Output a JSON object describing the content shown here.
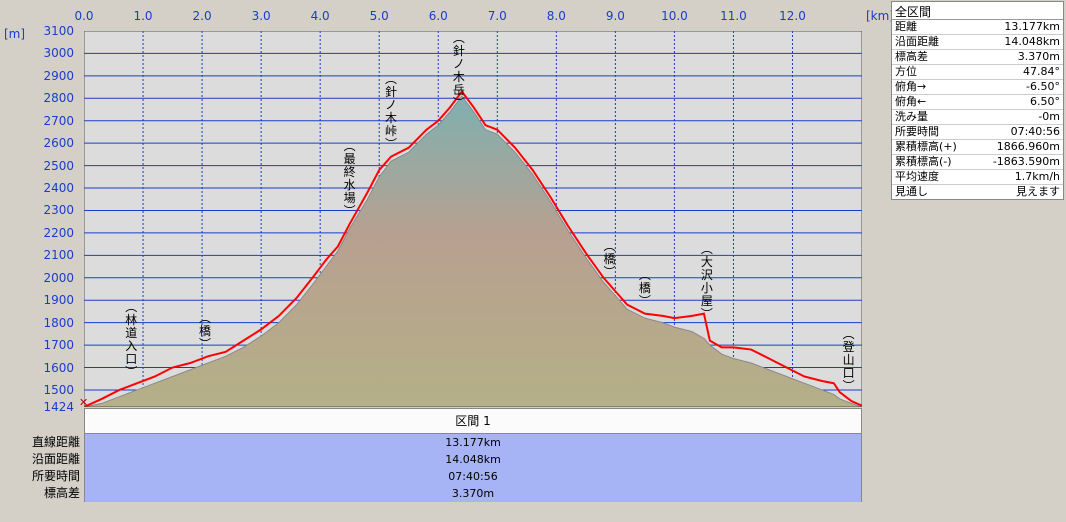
{
  "chart_data": {
    "type": "area",
    "xlabel": "[km]",
    "ylabel": "[m]",
    "xlim": [
      0,
      13.177
    ],
    "ylim": [
      1424,
      3100
    ],
    "x_ticks": [
      "0.0",
      "1.0",
      "2.0",
      "3.0",
      "4.0",
      "5.0",
      "6.0",
      "7.0",
      "8.0",
      "9.0",
      "10.0",
      "11.0",
      "12.0"
    ],
    "y_ticks": [
      "3100",
      "3000",
      "2900",
      "2800",
      "2700",
      "2600",
      "2500",
      "2400",
      "2300",
      "2200",
      "2100",
      "2000",
      "1900",
      "1800",
      "1700",
      "1600",
      "1500",
      "1424"
    ],
    "grid": true,
    "x": [
      0.0,
      0.3,
      0.6,
      0.9,
      1.2,
      1.5,
      1.8,
      2.1,
      2.4,
      2.7,
      3.0,
      3.3,
      3.6,
      3.9,
      4.1,
      4.3,
      4.5,
      4.8,
      5.0,
      5.2,
      5.5,
      5.8,
      6.0,
      6.2,
      6.4,
      6.6,
      6.8,
      7.0,
      7.3,
      7.6,
      7.9,
      8.2,
      8.5,
      8.8,
      9.0,
      9.2,
      9.5,
      9.8,
      10.0,
      10.3,
      10.5,
      10.6,
      10.8,
      11.0,
      11.3,
      11.6,
      11.9,
      12.2,
      12.5,
      12.7,
      12.8,
      13.0,
      13.177
    ],
    "elevation": [
      1424,
      1460,
      1500,
      1530,
      1560,
      1600,
      1620,
      1650,
      1670,
      1720,
      1770,
      1830,
      1910,
      2010,
      2080,
      2140,
      2240,
      2380,
      2480,
      2540,
      2580,
      2660,
      2700,
      2760,
      2830,
      2760,
      2680,
      2660,
      2580,
      2480,
      2360,
      2230,
      2110,
      2000,
      1940,
      1880,
      1840,
      1830,
      1820,
      1830,
      1840,
      1720,
      1690,
      1690,
      1680,
      1640,
      1600,
      1560,
      1540,
      1530,
      1490,
      1450,
      1430
    ],
    "ground": [
      1424,
      1440,
      1470,
      1500,
      1530,
      1560,
      1590,
      1620,
      1650,
      1690,
      1740,
      1800,
      1880,
      1980,
      2050,
      2120,
      2220,
      2350,
      2450,
      2520,
      2560,
      2640,
      2680,
      2740,
      2810,
      2740,
      2660,
      2640,
      2560,
      2460,
      2340,
      2210,
      2090,
      1980,
      1920,
      1860,
      1820,
      1800,
      1780,
      1760,
      1730,
      1700,
      1660,
      1640,
      1620,
      1590,
      1560,
      1530,
      1500,
      1480,
      1460,
      1440,
      1424
    ],
    "points_of_interest": [
      {
        "name": "(林道入口)",
        "x": 0.8
      },
      {
        "name": "(橋)",
        "x": 2.05
      },
      {
        "name": "(最終水場)",
        "x": 4.5
      },
      {
        "name": "(針ノ木峠)",
        "x": 5.2
      },
      {
        "name": "(針ノ木岳)",
        "x": 6.35
      },
      {
        "name": "(橋)",
        "x": 8.9
      },
      {
        "name": "(橋)",
        "x": 9.5
      },
      {
        "name": "(大沢小屋)",
        "x": 10.55
      },
      {
        "name": "(登山口)",
        "x": 12.95
      }
    ],
    "colors": {
      "profile": "#ff0000",
      "grid": "#1a3ccc",
      "background": "#dcdcdc"
    }
  },
  "stats": {
    "header": "全区間",
    "rows": [
      {
        "label": "距離",
        "value": "13.177km"
      },
      {
        "label": "沿面距離",
        "value": "14.048km"
      },
      {
        "label": "標高差",
        "value": "3.370m"
      },
      {
        "label": "方位",
        "value": "47.84°"
      },
      {
        "label": "俯角→",
        "value": "-6.50°"
      },
      {
        "label": "俯角←",
        "value": "6.50°"
      },
      {
        "label": "洗み量",
        "value": "-0m"
      },
      {
        "label": "所要時間",
        "value": "07:40:56"
      },
      {
        "label": "累積標高(+)",
        "value": "1866.960m"
      },
      {
        "label": "累積標高(-)",
        "value": "-1863.590m"
      },
      {
        "label": "平均速度",
        "value": "1.7km/h"
      },
      {
        "label": "見通し",
        "value": "見えます"
      }
    ]
  },
  "segment": {
    "header": "区間 1",
    "rows": [
      {
        "label": "直線距離",
        "value": "13.177km"
      },
      {
        "label": "沿面距離",
        "value": "14.048km"
      },
      {
        "label": "所要時間",
        "value": "07:40:56"
      },
      {
        "label": "標高差",
        "value": "3.370m"
      }
    ]
  }
}
